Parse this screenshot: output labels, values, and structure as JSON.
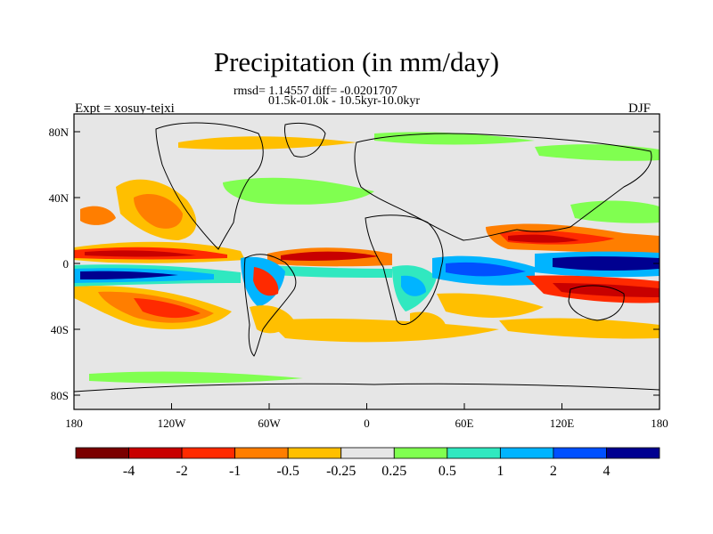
{
  "title": "Precipitation (in mm/day)",
  "stats_line1": "rmsd= 1.14557 diff= -0.0201707",
  "stats_line2": "01.5k-01.0k - 10.5kyr-10.0kyr",
  "experiment": "Expt = xosuy-tejxi",
  "season": "DJF",
  "map": {
    "background": "#e6e6e6",
    "lat_ticks": [
      "80N",
      "40N",
      "0",
      "40S",
      "80S"
    ],
    "lon_ticks": [
      "180",
      "120W",
      "60W",
      "0",
      "60E",
      "120E",
      "180"
    ]
  },
  "colorbar": {
    "colors": [
      "#7a0000",
      "#c80000",
      "#ff2a00",
      "#ff7e00",
      "#ffbf00",
      "#e6e6e6",
      "#80ff50",
      "#30e8c0",
      "#00b4ff",
      "#0050ff",
      "#000090"
    ],
    "labels": [
      "-4",
      "-2",
      "-1",
      "-0.5",
      "-0.25",
      "0.25",
      "0.5",
      "1",
      "2",
      "4"
    ]
  }
}
